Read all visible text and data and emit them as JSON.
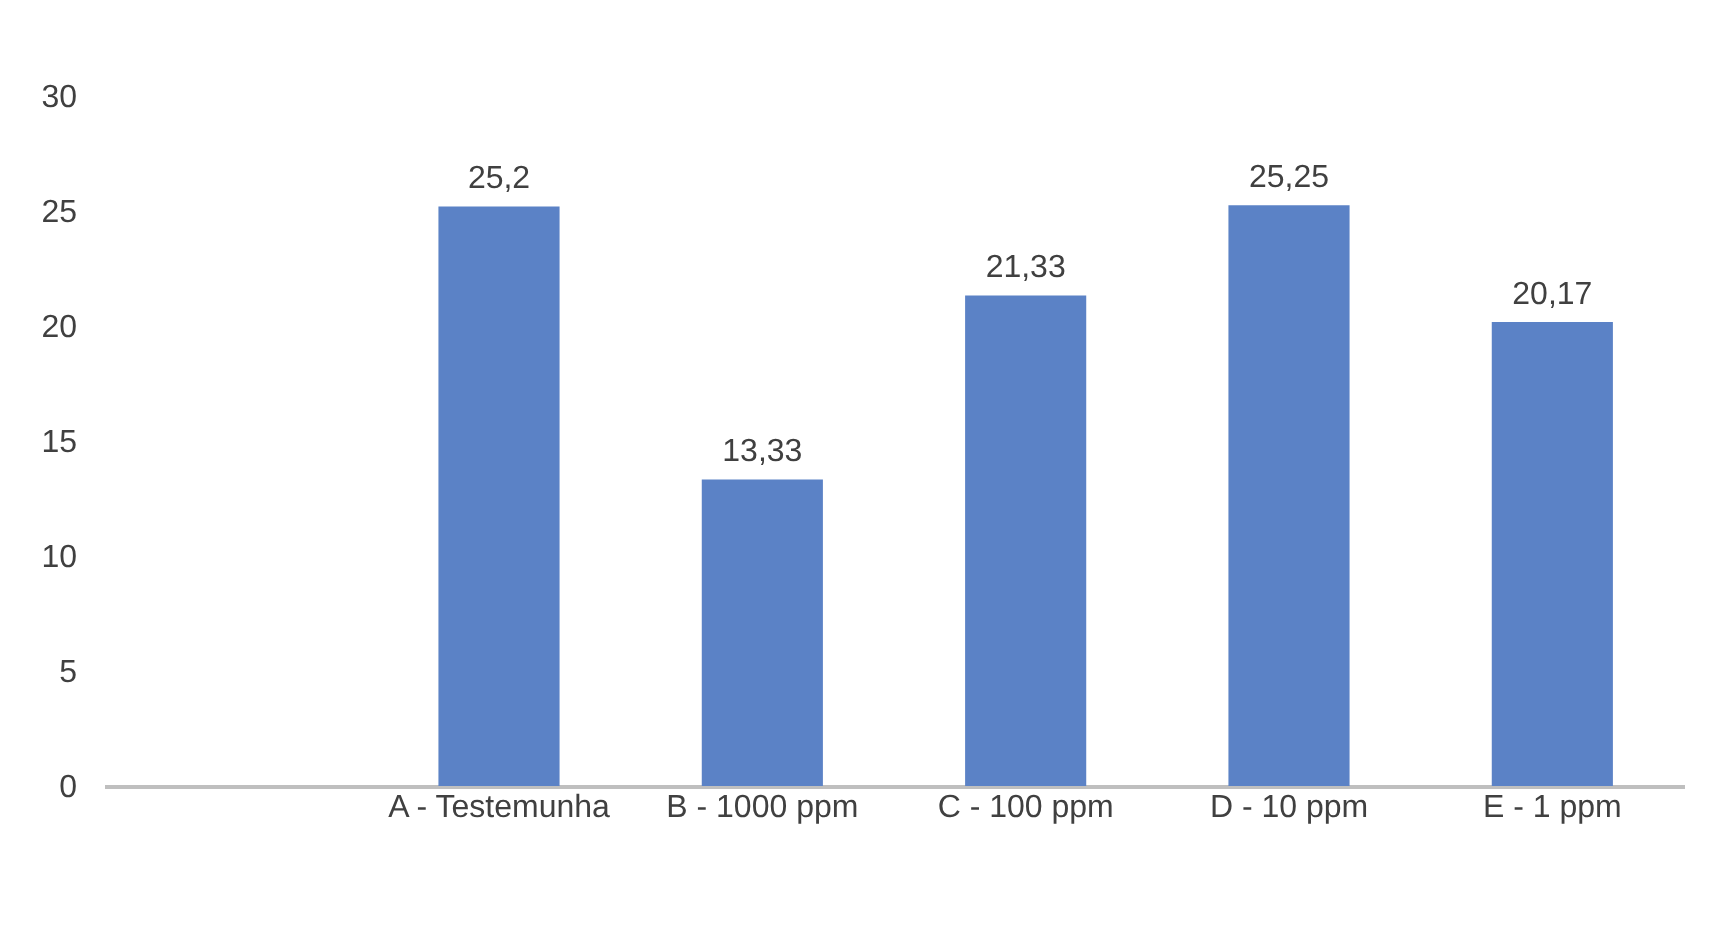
{
  "chart_data": {
    "type": "bar",
    "categories": [
      null,
      "A - Testemunha",
      "B - 1000 ppm",
      "C - 100 ppm",
      "D - 10 ppm",
      "E - 1 ppm"
    ],
    "values": [
      null,
      25.2,
      13.33,
      21.33,
      25.25,
      20.17
    ],
    "value_labels": [
      null,
      "25,2",
      "13,33",
      "21,33",
      "25,25",
      "20,17"
    ],
    "color": "#5b82c6",
    "ylim": [
      0,
      30
    ],
    "yticks": [
      0,
      5,
      10,
      15,
      20,
      25,
      30
    ]
  }
}
